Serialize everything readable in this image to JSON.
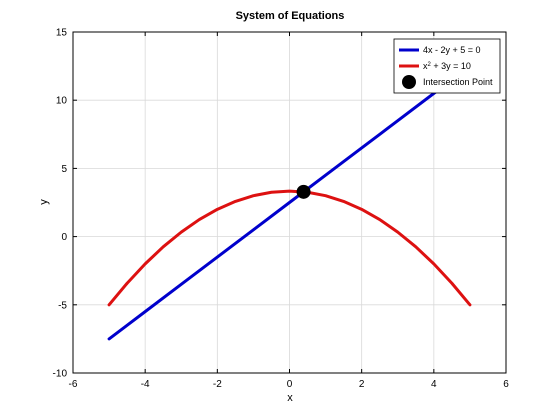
{
  "chart_data": {
    "type": "line",
    "title": "System of Equations",
    "xlabel": "x",
    "ylabel": "y",
    "xlim": [
      -6,
      6
    ],
    "ylim": [
      -10,
      15
    ],
    "xticks": [
      -6,
      -4,
      -2,
      0,
      2,
      4,
      6
    ],
    "yticks": [
      -10,
      -5,
      0,
      5,
      10,
      15
    ],
    "grid": true,
    "legend_position": "top-right",
    "series": [
      {
        "name": "4x - 2y + 5 = 0",
        "name_parts": {
          "before": "4x - 2y + 5 = 0",
          "sup": "",
          "after": ""
        },
        "kind": "line",
        "color": "#0000cc",
        "x": [
          -5,
          -4,
          -3,
          -2,
          -1,
          0,
          1,
          2,
          3,
          4,
          5
        ],
        "y": [
          -7.5,
          -5.5,
          -3.5,
          -1.5,
          0.5,
          2.5,
          4.5,
          6.5,
          8.5,
          10.5,
          12.5
        ]
      },
      {
        "name": "x2 + 3y = 10",
        "name_parts": {
          "before": "x",
          "sup": "2",
          "after": " + 3y = 10"
        },
        "kind": "line",
        "color": "#dd1111",
        "x": [
          -5,
          -4.5,
          -4,
          -3.5,
          -3,
          -2.5,
          -2,
          -1.5,
          -1,
          -0.5,
          0,
          0.5,
          1,
          1.5,
          2,
          2.5,
          3,
          3.5,
          4,
          4.5,
          5
        ],
        "y": [
          -5,
          -3.42,
          -2,
          -0.75,
          0.33,
          1.25,
          2,
          2.58,
          3,
          3.25,
          3.33,
          3.25,
          3,
          2.58,
          2,
          1.25,
          0.33,
          -0.75,
          -2,
          -3.42,
          -5
        ]
      },
      {
        "name": "Intersection Point",
        "name_parts": {
          "before": "Intersection Point",
          "sup": "",
          "after": ""
        },
        "kind": "marker",
        "color": "#000000",
        "x": [
          0.39
        ],
        "y": [
          3.28
        ]
      }
    ]
  }
}
